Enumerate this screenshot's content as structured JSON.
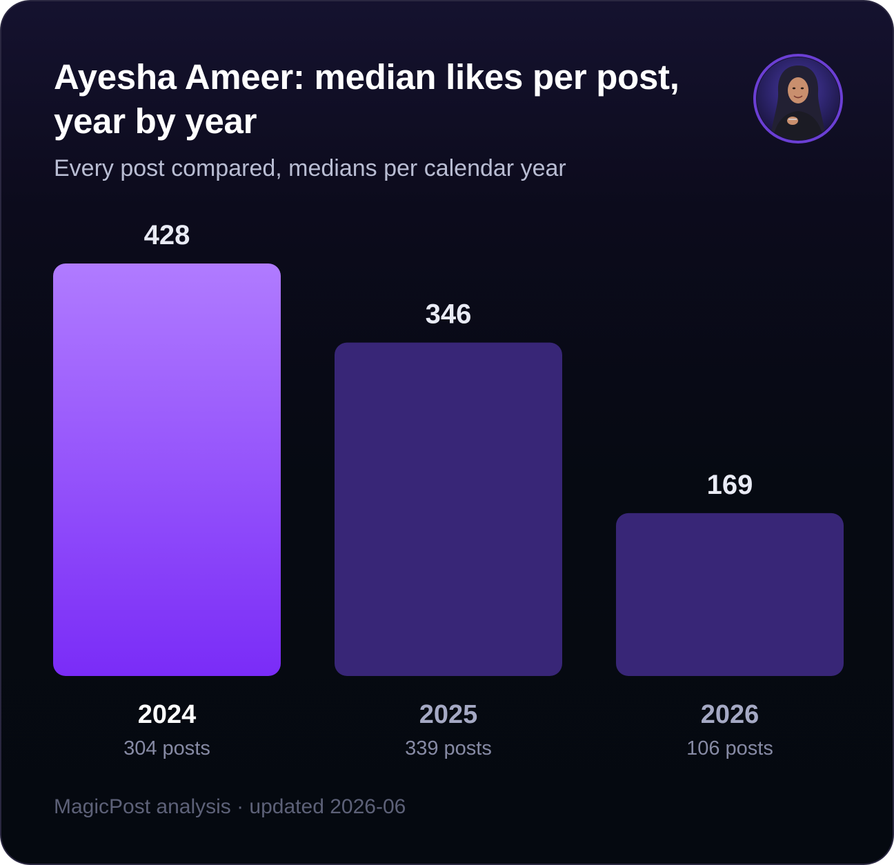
{
  "header": {
    "title": "Ayesha Ameer: median likes per post, year by year",
    "subtitle": "Every post compared, medians per calendar year"
  },
  "avatar": {
    "icon": "person-portrait-icon",
    "ring_color": "#6b3fd4"
  },
  "footer": {
    "text": "MagicPost analysis · updated 2026-06"
  },
  "colors": {
    "highlight_top": "#b07bff",
    "highlight_bottom": "#7a2cf7",
    "muted_bar": "#382677",
    "value_label": "#e9ebf5",
    "year_highlight": "#ffffff",
    "year_muted": "#a5a9c4",
    "post_count": "#868aa4"
  },
  "chart_data": {
    "type": "bar",
    "title": "Ayesha Ameer: median likes per post, year by year",
    "subtitle": "Every post compared, medians per calendar year",
    "xlabel": "",
    "ylabel": "",
    "categories": [
      "2024",
      "2025",
      "2026"
    ],
    "values": [
      428,
      346,
      169
    ],
    "value_labels": [
      "428",
      "346",
      "169"
    ],
    "post_counts": [
      "304 posts",
      "339 posts",
      "106 posts"
    ],
    "highlighted_category": "2024",
    "ylim": [
      0,
      428
    ],
    "grid": false,
    "legend": "none"
  }
}
